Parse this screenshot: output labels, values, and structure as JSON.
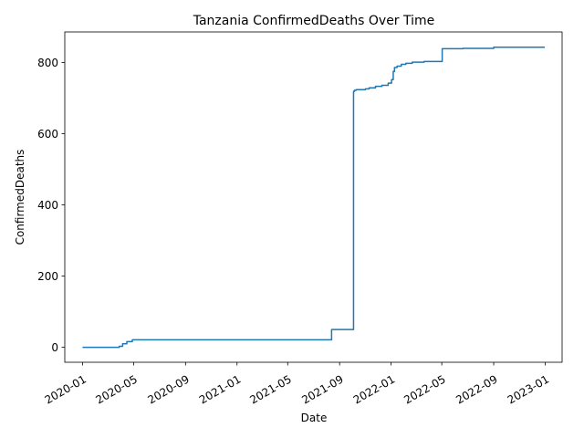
{
  "chart_data": {
    "type": "line",
    "title": "Tanzania  ConfirmedDeaths Over Time",
    "xlabel": "Date",
    "ylabel": "ConfirmedDeaths",
    "xlim": [
      "2019-11-20",
      "2023-02-10"
    ],
    "ylim": [
      -42,
      886
    ],
    "x_ticks": [
      "2020-01",
      "2020-05",
      "2020-09",
      "2021-01",
      "2021-05",
      "2021-09",
      "2022-01",
      "2022-05",
      "2022-09",
      "2023-01"
    ],
    "y_ticks": [
      0,
      200,
      400,
      600,
      800
    ],
    "grid": false,
    "legend": "none",
    "series": [
      {
        "color": "#1f77b4",
        "step": true,
        "points": [
          [
            "2020-01-01",
            0
          ],
          [
            "2020-03-22",
            0
          ],
          [
            "2020-03-28",
            3
          ],
          [
            "2020-04-05",
            10
          ],
          [
            "2020-04-15",
            16
          ],
          [
            "2020-04-28",
            21
          ],
          [
            "2021-08-12",
            21
          ],
          [
            "2021-08-13",
            50
          ],
          [
            "2021-10-03",
            50
          ],
          [
            "2021-10-04",
            719
          ],
          [
            "2021-10-06",
            722
          ],
          [
            "2021-10-10",
            724
          ],
          [
            "2021-11-01",
            726
          ],
          [
            "2021-11-10",
            729
          ],
          [
            "2021-11-25",
            733
          ],
          [
            "2021-12-10",
            736
          ],
          [
            "2021-12-25",
            742
          ],
          [
            "2022-01-02",
            752
          ],
          [
            "2022-01-06",
            775
          ],
          [
            "2022-01-09",
            786
          ],
          [
            "2022-01-15",
            790
          ],
          [
            "2022-01-25",
            795
          ],
          [
            "2022-02-05",
            798
          ],
          [
            "2022-02-20",
            801
          ],
          [
            "2022-03-20",
            803
          ],
          [
            "2022-05-01",
            803
          ],
          [
            "2022-05-02",
            839
          ],
          [
            "2022-06-20",
            840
          ],
          [
            "2022-09-01",
            843
          ],
          [
            "2022-12-31",
            843
          ]
        ]
      }
    ]
  }
}
